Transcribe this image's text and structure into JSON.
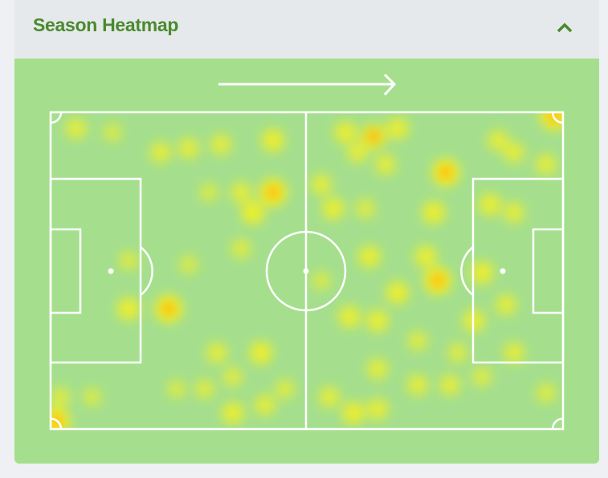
{
  "panel": {
    "title": "Season Heatmap",
    "collapse_icon": "chevron-up-icon",
    "attack_direction_icon": "arrow-right-icon"
  },
  "colors": {
    "title": "#4a8a2c",
    "header_bg": "#e6e9ec",
    "pitch_bg": "#a5df8e",
    "heat_low": "#f5f020",
    "heat_high": "#ff8a00"
  }
}
